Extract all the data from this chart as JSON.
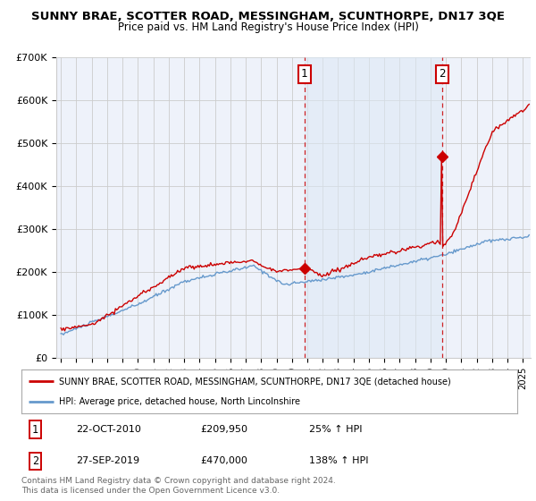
{
  "title": "SUNNY BRAE, SCOTTER ROAD, MESSINGHAM, SCUNTHORPE, DN17 3QE",
  "subtitle": "Price paid vs. HM Land Registry's House Price Index (HPI)",
  "legend_line1": "SUNNY BRAE, SCOTTER ROAD, MESSINGHAM, SCUNTHORPE, DN17 3QE (detached house)",
  "legend_line2": "HPI: Average price, detached house, North Lincolnshire",
  "footnote": "Contains HM Land Registry data © Crown copyright and database right 2024.\nThis data is licensed under the Open Government Licence v3.0.",
  "annotation1": {
    "label": "1",
    "date": "22-OCT-2010",
    "price": "£209,950",
    "pct": "25% ↑ HPI"
  },
  "annotation2": {
    "label": "2",
    "date": "27-SEP-2019",
    "price": "£470,000",
    "pct": "138% ↑ HPI"
  },
  "xlim_start": 1994.7,
  "xlim_end": 2025.5,
  "ylim_bottom": 0,
  "ylim_top": 700000,
  "yticks": [
    0,
    100000,
    200000,
    300000,
    400000,
    500000,
    600000,
    700000
  ],
  "ytick_labels": [
    "£0",
    "£100K",
    "£200K",
    "£300K",
    "£400K",
    "£500K",
    "£600K",
    "£700K"
  ],
  "red_color": "#cc0000",
  "blue_color": "#6699cc",
  "shade_color": "#dde8f5",
  "grid_color": "#cccccc",
  "background_color": "#ffffff",
  "plot_bg_color": "#eef2fa",
  "sale1_x": 2010.81,
  "sale1_y": 209950,
  "sale2_x": 2019.74,
  "sale2_y": 470000,
  "title_fontsize": 9.5,
  "subtitle_fontsize": 8.5
}
